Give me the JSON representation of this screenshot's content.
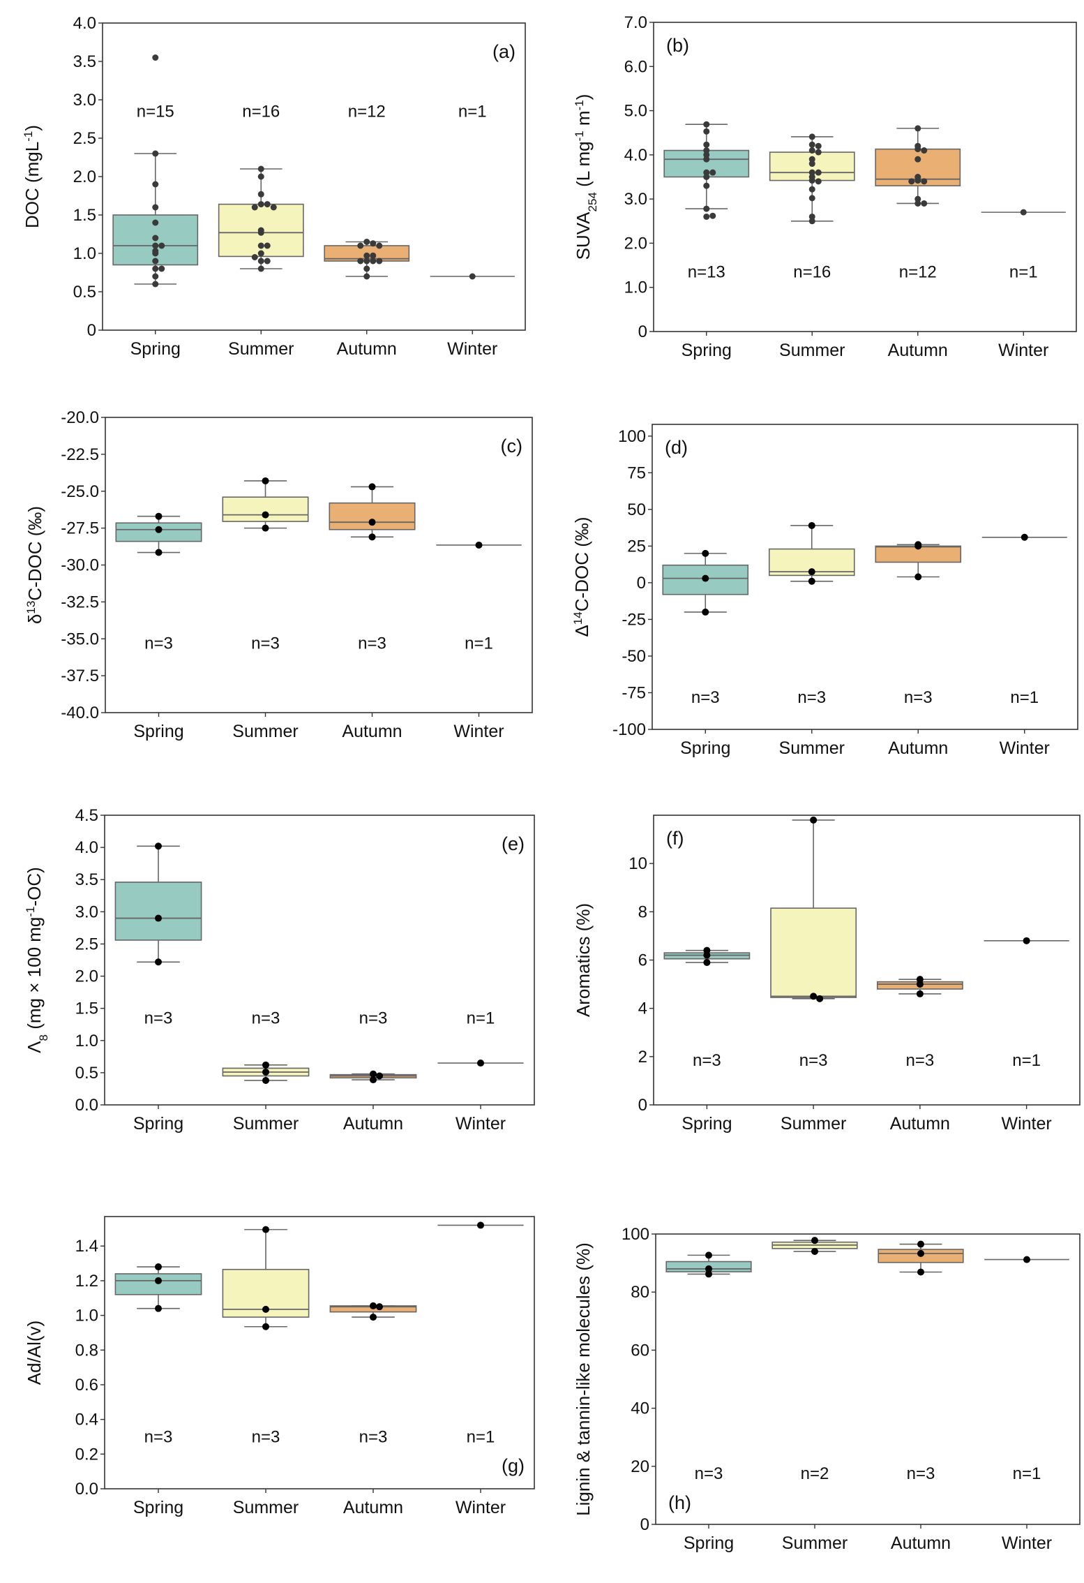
{
  "figure": {
    "colors": {
      "Spring": "#97cac1",
      "Summer": "#f5f4bd",
      "Autumn": "#eaaf72",
      "Winter": "#bbbbbb"
    }
  },
  "chart_data": [
    {
      "id": "a",
      "type": "box",
      "panel_label": "(a)",
      "label_position": "top-right",
      "ylabel": "DOC (mgL⁻¹)",
      "ylabel_parts": [
        [
          "DOC (mgL",
          ""
        ],
        [
          "-1",
          "sup"
        ],
        [
          ")",
          ""
        ]
      ],
      "ylim": [
        0,
        4.0
      ],
      "yticks": [
        0,
        0.5,
        1.0,
        1.5,
        2.0,
        2.5,
        3.0,
        3.5,
        4.0
      ],
      "ytick_labels": [
        "0",
        "0.5",
        "1.0",
        "1.5",
        "2.0",
        "2.5",
        "3.0",
        "3.5",
        "4.0"
      ],
      "categories": [
        "Spring",
        "Summer",
        "Autumn",
        "Winter"
      ],
      "n_labels": [
        "n=15",
        "n=16",
        "n=12",
        "n=1"
      ],
      "n_y": 2.85,
      "point_style": "swarm-grey",
      "boxes": [
        {
          "q1": 0.85,
          "median": 1.1,
          "q3": 1.5,
          "whislo": 0.6,
          "whishi": 2.3
        },
        {
          "q1": 0.96,
          "median": 1.27,
          "q3": 1.64,
          "whislo": 0.8,
          "whishi": 2.1
        },
        {
          "q1": 0.9,
          "median": 0.93,
          "q3": 1.1,
          "whislo": 0.7,
          "whishi": 1.15
        },
        {
          "q1": 0.7,
          "median": 0.7,
          "q3": 0.7,
          "whislo": 0.7,
          "whishi": 0.7
        }
      ],
      "points": [
        [
          3.55,
          2.3,
          1.9,
          1.6,
          1.4,
          1.2,
          1.1,
          1.1,
          1.03,
          1.0,
          0.9,
          0.8,
          0.8,
          0.7,
          0.6
        ],
        [
          2.1,
          2.0,
          1.77,
          1.64,
          1.64,
          1.6,
          1.6,
          1.3,
          1.27,
          1.1,
          1.1,
          1.0,
          0.9,
          0.9,
          0.8,
          0.95
        ],
        [
          1.15,
          1.13,
          1.1,
          1.1,
          0.97,
          0.97,
          0.9,
          0.9,
          0.9,
          0.9,
          0.8,
          0.7
        ],
        [
          0.7
        ]
      ]
    },
    {
      "id": "b",
      "type": "box",
      "panel_label": "(b)",
      "label_position": "top-left",
      "ylabel": "SUVA254 (L mg⁻¹ m⁻¹)",
      "ylabel_parts": [
        [
          "SUVA",
          ""
        ],
        [
          "254",
          "sub"
        ],
        [
          " (L mg",
          ""
        ],
        [
          "-1",
          "sup"
        ],
        [
          " m",
          ""
        ],
        [
          "-1",
          "sup"
        ],
        [
          ")",
          ""
        ]
      ],
      "ylim": [
        0,
        7.0
      ],
      "yticks": [
        0,
        1,
        2,
        3,
        4,
        5,
        6,
        7
      ],
      "ytick_labels": [
        "0",
        "1.0",
        "2.0",
        "3.0",
        "4.0",
        "5.0",
        "6.0",
        "7.0"
      ],
      "categories": [
        "Spring",
        "Summer",
        "Autumn",
        "Winter"
      ],
      "n_labels": [
        "n=13",
        "n=16",
        "n=12",
        "n=1"
      ],
      "n_y": 1.35,
      "point_style": "swarm-grey",
      "boxes": [
        {
          "q1": 3.5,
          "median": 3.9,
          "q3": 4.1,
          "whislo": 2.78,
          "whishi": 4.69
        },
        {
          "q1": 3.42,
          "median": 3.6,
          "q3": 4.06,
          "whislo": 2.5,
          "whishi": 4.41
        },
        {
          "q1": 3.3,
          "median": 3.45,
          "q3": 4.13,
          "whislo": 2.9,
          "whishi": 4.6
        },
        {
          "q1": 2.7,
          "median": 2.7,
          "q3": 2.7,
          "whislo": 2.7,
          "whishi": 2.7
        }
      ],
      "points": [
        [
          4.69,
          4.53,
          4.23,
          4.1,
          4.0,
          3.9,
          3.6,
          3.6,
          3.5,
          3.3,
          2.78,
          2.6,
          2.62
        ],
        [
          4.41,
          4.23,
          4.2,
          4.1,
          4.06,
          3.9,
          3.8,
          3.6,
          3.6,
          3.5,
          3.42,
          3.4,
          3.22,
          3.02,
          2.6,
          2.5
        ],
        [
          4.6,
          4.2,
          4.13,
          4.1,
          3.9,
          3.5,
          3.42,
          3.4,
          3.4,
          3.0,
          2.9,
          2.9
        ],
        [
          2.7
        ]
      ]
    },
    {
      "id": "c",
      "type": "box",
      "panel_label": "(c)",
      "label_position": "top-right",
      "ylabel": "δ13C-DOC (‰)",
      "ylabel_parts": [
        [
          "δ",
          ""
        ],
        [
          "13",
          "sup"
        ],
        [
          "C-DOC (‰)",
          ""
        ]
      ],
      "ylim": [
        -40,
        -20
      ],
      "yticks": [
        -40,
        -37.5,
        -35,
        -32.5,
        -30,
        -27.5,
        -25,
        -22.5,
        -20
      ],
      "ytick_labels": [
        "-40.0",
        "-37.5",
        "-35.0",
        "-32.5",
        "-30.0",
        "-27.5",
        "-25.0",
        "-22.5",
        "-20.0"
      ],
      "categories": [
        "Spring",
        "Summer",
        "Autumn",
        "Winter"
      ],
      "n_labels": [
        "n=3",
        "n=3",
        "n=3",
        "n=1"
      ],
      "n_y": -35.3,
      "point_style": "black",
      "boxes": [
        {
          "q1": -28.4,
          "median": -27.6,
          "q3": -27.15,
          "whislo": -29.15,
          "whishi": -26.7
        },
        {
          "q1": -27.05,
          "median": -26.6,
          "q3": -25.4,
          "whislo": -27.5,
          "whishi": -24.3
        },
        {
          "q1": -27.6,
          "median": -27.1,
          "q3": -25.8,
          "whislo": -28.1,
          "whishi": -24.7
        },
        {
          "q1": -28.65,
          "median": -28.65,
          "q3": -28.65,
          "whislo": -28.65,
          "whishi": -28.65
        }
      ],
      "points": [
        [
          -26.7,
          -27.6,
          -29.15
        ],
        [
          -24.3,
          -26.6,
          -27.5
        ],
        [
          -24.7,
          -27.1,
          -28.1
        ],
        [
          -28.65
        ]
      ]
    },
    {
      "id": "d",
      "type": "box",
      "panel_label": "(d)",
      "label_position": "top-left",
      "ylabel": "Δ14C-DOC (‰)",
      "ylabel_parts": [
        [
          "Δ",
          ""
        ],
        [
          "14",
          "sup"
        ],
        [
          "C-DOC (‰)",
          ""
        ]
      ],
      "ylim": [
        -100,
        108
      ],
      "yticks": [
        -100,
        -75,
        -50,
        -25,
        0,
        25,
        50,
        75,
        100
      ],
      "ytick_labels": [
        "-100",
        "-75",
        "-50",
        "-25",
        "0",
        "25",
        "50",
        "75",
        "100"
      ],
      "categories": [
        "Spring",
        "Summer",
        "Autumn",
        "Winter"
      ],
      "n_labels": [
        "n=3",
        "n=3",
        "n=3",
        "n=1"
      ],
      "n_y": -78,
      "point_style": "black",
      "boxes": [
        {
          "q1": -8,
          "median": 3,
          "q3": 12,
          "whislo": -20,
          "whishi": 20
        },
        {
          "q1": 5,
          "median": 7.5,
          "q3": 23,
          "whislo": 1,
          "whishi": 39
        },
        {
          "q1": 14,
          "median": 24.5,
          "q3": 25,
          "whislo": 4,
          "whishi": 26
        },
        {
          "q1": 31,
          "median": 31,
          "q3": 31,
          "whislo": 31,
          "whishi": 31
        }
      ],
      "points": [
        [
          20,
          3,
          -20
        ],
        [
          39,
          7.5,
          1
        ],
        [
          26,
          25,
          4
        ],
        [
          31
        ]
      ]
    },
    {
      "id": "e",
      "type": "box",
      "panel_label": "(e)",
      "label_position": "top-right",
      "ylabel": "Λ8 (mg × 100 mg⁻¹-OC)",
      "ylabel_parts": [
        [
          "Λ",
          ""
        ],
        [
          "8",
          "sub"
        ],
        [
          " (mg × 100 mg",
          ""
        ],
        [
          "-1",
          "sup"
        ],
        [
          "-OC)",
          ""
        ]
      ],
      "ylim": [
        0,
        4.5
      ],
      "yticks": [
        0,
        0.5,
        1.0,
        1.5,
        2.0,
        2.5,
        3.0,
        3.5,
        4.0,
        4.5
      ],
      "ytick_labels": [
        "0.0",
        "0.5",
        "1.0",
        "1.5",
        "2.0",
        "2.5",
        "3.0",
        "3.5",
        "4.0",
        "4.5"
      ],
      "categories": [
        "Spring",
        "Summer",
        "Autumn",
        "Winter"
      ],
      "n_labels": [
        "n=3",
        "n=3",
        "n=3",
        "n=1"
      ],
      "n_y": 1.35,
      "point_style": "black",
      "boxes": [
        {
          "q1": 2.56,
          "median": 2.9,
          "q3": 3.46,
          "whislo": 2.22,
          "whishi": 4.02
        },
        {
          "q1": 0.45,
          "median": 0.51,
          "q3": 0.57,
          "whislo": 0.38,
          "whishi": 0.62
        },
        {
          "q1": 0.42,
          "median": 0.45,
          "q3": 0.47,
          "whislo": 0.39,
          "whishi": 0.48
        },
        {
          "q1": 0.65,
          "median": 0.65,
          "q3": 0.65,
          "whislo": 0.65,
          "whishi": 0.65
        }
      ],
      "points": [
        [
          4.02,
          2.9,
          2.22
        ],
        [
          0.62,
          0.51,
          0.38
        ],
        [
          0.48,
          0.45,
          0.39
        ],
        [
          0.65
        ]
      ]
    },
    {
      "id": "f",
      "type": "box",
      "panel_label": "(f)",
      "label_position": "top-left",
      "ylabel": "Aromatics (%)",
      "ylabel_parts": [
        [
          "Aromatics (%)",
          ""
        ]
      ],
      "ylim": [
        0,
        12
      ],
      "yticks": [
        0,
        2,
        4,
        6,
        8,
        10
      ],
      "ytick_labels": [
        "0",
        "2",
        "4",
        "6",
        "8",
        "10"
      ],
      "categories": [
        "Spring",
        "Summer",
        "Autumn",
        "Winter"
      ],
      "n_labels": [
        "n=3",
        "n=3",
        "n=3",
        "n=1"
      ],
      "n_y": 1.85,
      "point_style": "black",
      "boxes": [
        {
          "q1": 6.05,
          "median": 6.2,
          "q3": 6.3,
          "whislo": 5.9,
          "whishi": 6.4
        },
        {
          "q1": 4.45,
          "median": 4.5,
          "q3": 8.15,
          "whislo": 4.4,
          "whishi": 11.8
        },
        {
          "q1": 4.8,
          "median": 5.0,
          "q3": 5.1,
          "whislo": 4.6,
          "whishi": 5.2
        },
        {
          "q1": 6.8,
          "median": 6.8,
          "q3": 6.8,
          "whislo": 6.8,
          "whishi": 6.8
        }
      ],
      "points": [
        [
          6.4,
          6.2,
          5.9
        ],
        [
          11.8,
          4.5,
          4.4
        ],
        [
          5.2,
          5.0,
          4.6
        ],
        [
          6.8
        ]
      ]
    },
    {
      "id": "g",
      "type": "box",
      "panel_label": "(g)",
      "label_position": "bottom-right",
      "ylabel": "Ad/Al(v)",
      "ylabel_parts": [
        [
          "Ad/Al(v)",
          ""
        ]
      ],
      "ylim": [
        0,
        1.57
      ],
      "yticks": [
        0,
        0.2,
        0.4,
        0.6,
        0.8,
        1.0,
        1.2,
        1.4
      ],
      "ytick_labels": [
        "0.0",
        "0.2",
        "0.4",
        "0.6",
        "0.8",
        "1.0",
        "1.2",
        "1.4"
      ],
      "categories": [
        "Spring",
        "Summer",
        "Autumn",
        "Winter"
      ],
      "n_labels": [
        "n=3",
        "n=3",
        "n=3",
        "n=1"
      ],
      "n_y": 0.3,
      "point_style": "black",
      "boxes": [
        {
          "q1": 1.12,
          "median": 1.2,
          "q3": 1.24,
          "whislo": 1.04,
          "whishi": 1.28
        },
        {
          "q1": 0.99,
          "median": 1.035,
          "q3": 1.265,
          "whislo": 0.935,
          "whishi": 1.495
        },
        {
          "q1": 1.02,
          "median": 1.05,
          "q3": 1.055,
          "whislo": 0.99,
          "whishi": 1.055
        },
        {
          "q1": 1.52,
          "median": 1.52,
          "q3": 1.52,
          "whislo": 1.52,
          "whishi": 1.52
        }
      ],
      "points": [
        [
          1.28,
          1.2,
          1.04
        ],
        [
          1.495,
          1.035,
          0.935
        ],
        [
          1.055,
          1.05,
          0.99
        ],
        [
          1.52
        ]
      ]
    },
    {
      "id": "h",
      "type": "box",
      "panel_label": "(h)",
      "label_position": "bottom-left",
      "ylabel": "Lignin & tannin-like molecules (%)",
      "ylabel_parts": [
        [
          "Lignin & tannin-like molecules (%)",
          ""
        ]
      ],
      "ylim": [
        0,
        100
      ],
      "yticks": [
        0,
        20,
        40,
        60,
        80,
        100
      ],
      "ytick_labels": [
        "0",
        "20",
        "40",
        "60",
        "80",
        "100"
      ],
      "categories": [
        "Spring",
        "Summer",
        "Autumn",
        "Winter"
      ],
      "n_labels": [
        "n=3",
        "n=2",
        "n=3",
        "n=1"
      ],
      "n_y": 17.5,
      "point_style": "black",
      "boxes": [
        {
          "q1": 87,
          "median": 88,
          "q3": 90.5,
          "whislo": 86.2,
          "whishi": 92.7
        },
        {
          "q1": 95,
          "median": 96.2,
          "q3": 97.2,
          "whislo": 94,
          "whishi": 97.8
        },
        {
          "q1": 90.2,
          "median": 93.3,
          "q3": 94.7,
          "whislo": 86.9,
          "whishi": 96.5
        },
        {
          "q1": 91.2,
          "median": 91.2,
          "q3": 91.2,
          "whislo": 91.2,
          "whishi": 91.2
        }
      ],
      "points": [
        [
          92.7,
          88,
          86.2
        ],
        [
          97.8,
          94
        ],
        [
          96.5,
          93.3,
          86.9
        ],
        [
          91.2
        ]
      ]
    }
  ]
}
